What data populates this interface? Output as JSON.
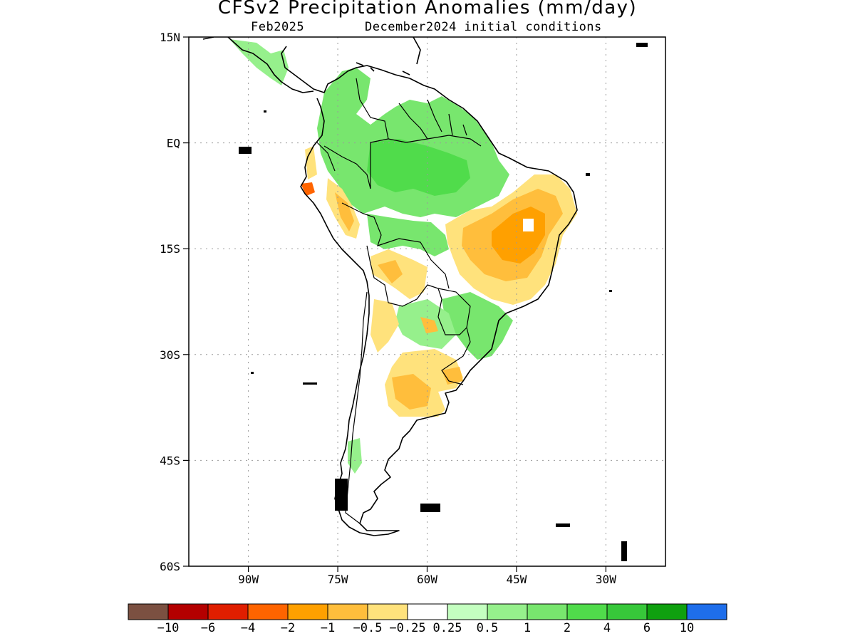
{
  "title": "CFSv2 Precipitation Anomalies (mm/day)",
  "subtitle_left": "Feb2025",
  "subtitle_right": "December2024 initial conditions",
  "map": {
    "lon_range": [
      -100,
      -20
    ],
    "lat_range": [
      -60,
      15
    ],
    "grid": true,
    "y_ticks": [
      {
        "lat": 15,
        "label": "15N"
      },
      {
        "lat": 0,
        "label": "EQ"
      },
      {
        "lat": -15,
        "label": "15S"
      },
      {
        "lat": -30,
        "label": "30S"
      },
      {
        "lat": -45,
        "label": "45S"
      },
      {
        "lat": -60,
        "label": "60S"
      }
    ],
    "x_ticks": [
      {
        "lon": -90,
        "label": "90W"
      },
      {
        "lon": -75,
        "label": "75W"
      },
      {
        "lon": -60,
        "label": "60W"
      },
      {
        "lon": -45,
        "label": "45W"
      },
      {
        "lon": -30,
        "label": "30W"
      }
    ]
  },
  "colorbar": {
    "colors": [
      "#7b5041",
      "#b40000",
      "#e01e00",
      "#ff6400",
      "#ffa000",
      "#ffbe3c",
      "#ffe27c",
      "#ffffff",
      "#c4ffc0",
      "#96f08c",
      "#78e66e",
      "#50dc4b",
      "#37c83a",
      "#0fa00f",
      "#1e6eeb"
    ],
    "labels": [
      "−10",
      "−6",
      "−4",
      "−2",
      "−1",
      "−0.5",
      "−0.25",
      "0.25",
      "0.5",
      "1",
      "2",
      "4",
      "6",
      "10"
    ]
  },
  "anomaly_colors": {
    "green_light": "#96f08c",
    "green": "#78e66e",
    "green_strong": "#50dc4b",
    "yellow": "#ffe27c",
    "orange_light": "#ffbe3c",
    "orange": "#ffa000",
    "red_orange": "#ff6400"
  }
}
